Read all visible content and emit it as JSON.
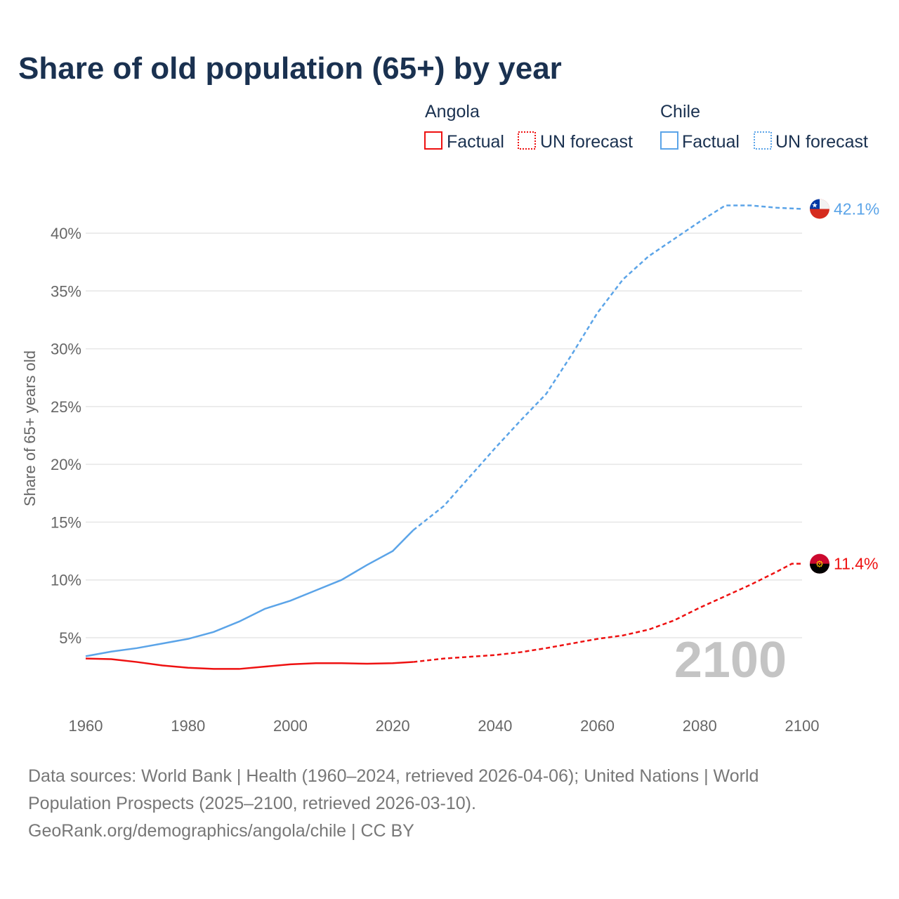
{
  "chart_data": {
    "type": "line",
    "title": "Share of old population (65+) by year",
    "ylabel": "Share of 65+ years old",
    "xlabel": "",
    "xlim": [
      1960,
      2100
    ],
    "ylim": [
      0,
      43
    ],
    "x_ticks": [
      1960,
      1980,
      2000,
      2020,
      2040,
      2060,
      2080,
      2100
    ],
    "x_tick_labels": [
      "1960",
      "1980",
      "2000",
      "2020",
      "2040",
      "2060",
      "2080",
      "2100"
    ],
    "y_ticks": [
      5,
      10,
      15,
      20,
      25,
      30,
      35,
      40
    ],
    "y_tick_labels": [
      "5%",
      "10%",
      "15%",
      "20%",
      "25%",
      "30%",
      "35%",
      "40%"
    ],
    "grid": true,
    "year_watermark": "2100",
    "legend": {
      "placement": "top-right",
      "groups": [
        {
          "country": "Angola",
          "factual": "Factual",
          "forecast": "UN forecast",
          "color": "#ee1111"
        },
        {
          "country": "Chile",
          "factual": "Factual",
          "forecast": "UN forecast",
          "color": "#5ba4e8"
        }
      ]
    },
    "series": [
      {
        "name": "Chile",
        "color": "#5ba4e8",
        "end_label": "42.1%",
        "forecast_start": 2024,
        "x": [
          1960,
          1965,
          1970,
          1975,
          1980,
          1985,
          1990,
          1995,
          2000,
          2005,
          2010,
          2015,
          2020,
          2024,
          2030,
          2035,
          2040,
          2045,
          2050,
          2055,
          2060,
          2065,
          2070,
          2075,
          2080,
          2085,
          2090,
          2095,
          2100
        ],
        "y": [
          3.4,
          3.8,
          4.1,
          4.5,
          4.9,
          5.5,
          6.4,
          7.5,
          8.2,
          9.1,
          10.0,
          11.3,
          12.5,
          14.3,
          16.4,
          18.9,
          21.4,
          23.8,
          26.1,
          29.5,
          33.1,
          36.0,
          38.0,
          39.5,
          41.0,
          42.4,
          42.4,
          42.2,
          42.1
        ]
      },
      {
        "name": "Angola",
        "color": "#ee1111",
        "end_label": "11.4%",
        "forecast_start": 2024,
        "x": [
          1960,
          1965,
          1970,
          1975,
          1980,
          1985,
          1990,
          1995,
          2000,
          2005,
          2010,
          2015,
          2020,
          2024,
          2030,
          2035,
          2040,
          2045,
          2050,
          2055,
          2060,
          2065,
          2070,
          2075,
          2080,
          2085,
          2090,
          2095,
          2098,
          2100
        ],
        "y": [
          3.2,
          3.15,
          2.9,
          2.6,
          2.4,
          2.3,
          2.3,
          2.5,
          2.7,
          2.8,
          2.8,
          2.75,
          2.8,
          2.9,
          3.2,
          3.35,
          3.5,
          3.75,
          4.1,
          4.5,
          4.9,
          5.2,
          5.7,
          6.5,
          7.6,
          8.6,
          9.6,
          10.7,
          11.4,
          11.4
        ]
      }
    ]
  },
  "footer": {
    "line1": "Data sources: World Bank | Health (1960–2024, retrieved 2026-04-06); United Nations | World",
    "line2": "Population Prospects (2025–2100, retrieved 2026-03-10).",
    "line3": "GeoRank.org/demographics/angola/chile | CC BY"
  }
}
